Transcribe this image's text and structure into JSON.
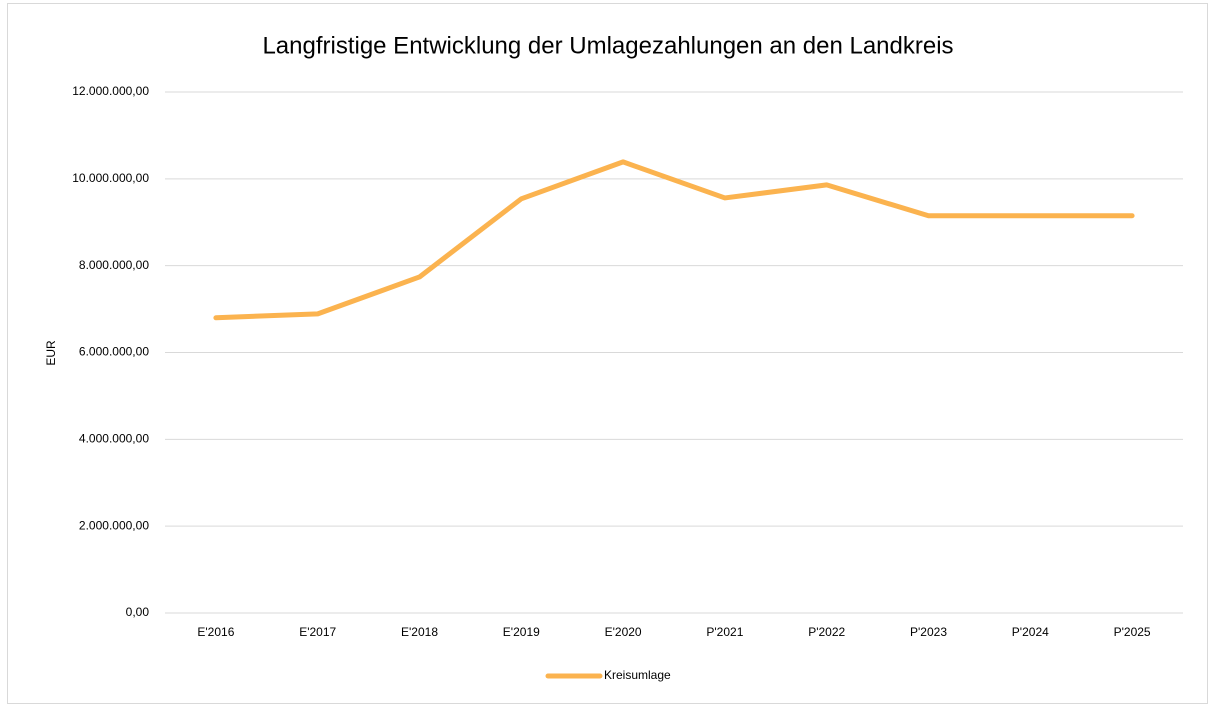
{
  "chart_data": {
    "type": "line",
    "title": "Langfristige Entwicklung der Umlagezahlungen an den Landkreis",
    "y_label": "EUR",
    "categories": [
      "E'2016",
      "E'2017",
      "E'2018",
      "E'2019",
      "E'2020",
      "P'2021",
      "P'2022",
      "P'2023",
      "P'2024",
      "P'2025"
    ],
    "series": [
      {
        "name": "Kreisumlage",
        "color": "#fbb34f",
        "values": [
          6800000,
          6890000,
          7740000,
          9540000,
          10390000,
          9560000,
          9860000,
          9150000,
          9150000,
          9150000
        ]
      }
    ],
    "ylim": [
      0,
      12000000
    ],
    "yticks": [
      {
        "value": 0,
        "label": "0,00"
      },
      {
        "value": 2000000,
        "label": "2.000.000,00"
      },
      {
        "value": 4000000,
        "label": "4.000.000,00"
      },
      {
        "value": 6000000,
        "label": "6.000.000,00"
      },
      {
        "value": 8000000,
        "label": "8.000.000,00"
      },
      {
        "value": 10000000,
        "label": "10.000.000,00"
      },
      {
        "value": 12000000,
        "label": "12.000.000,00"
      }
    ],
    "grid": true,
    "legend": "bottom"
  }
}
